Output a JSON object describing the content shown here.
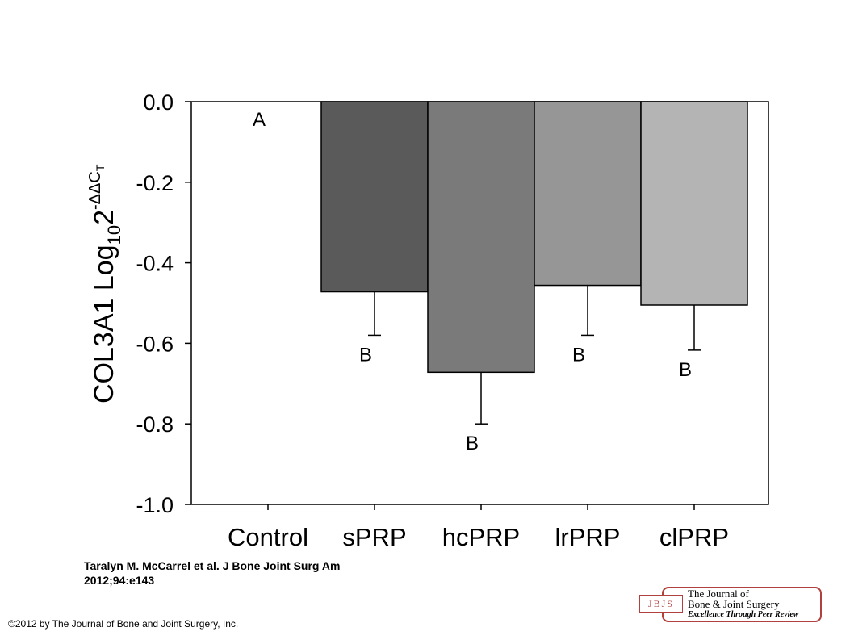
{
  "chart_data": {
    "type": "bar",
    "categories": [
      "Control",
      "sPRP",
      "hcPRP",
      "lrPRP",
      "clPRP"
    ],
    "values": [
      0.0,
      -0.472,
      -0.672,
      -0.456,
      -0.505
    ],
    "error_bars": [
      0.0,
      0.108,
      0.128,
      0.124,
      0.112
    ],
    "significance_labels": [
      "A",
      "B",
      "B",
      "B",
      "B"
    ],
    "bar_colors": [
      "#ffffff",
      "#5a5a5a",
      "#7a7a7a",
      "#969696",
      "#b4b4b4"
    ],
    "ylabel_main": "COL3A1 Log",
    "ylabel_sub": "10",
    "ylabel_base": "2",
    "ylabel_sup": "-ΔΔC",
    "ylabel_sup_sub": "T",
    "ylim": [
      -1.0,
      0.0
    ],
    "yticks": [
      "0.0",
      "-0.2",
      "-0.4",
      "-0.6",
      "-0.8",
      "-1.0"
    ],
    "ytick_values": [
      0.0,
      -0.2,
      -0.4,
      -0.6,
      -0.8,
      -1.0
    ],
    "grid": false
  },
  "citation": {
    "line1": "Taralyn M. McCarrel et al. J Bone Joint Surg Am",
    "line2": "2012;94:e143"
  },
  "copyright": "©2012 by The Journal of Bone and Joint Surgery, Inc.",
  "logo": {
    "abbrev": "JBJS",
    "line1": "The Journal of",
    "line2": "Bone & Joint Surgery",
    "line3": "Excellence Through Peer Review"
  }
}
